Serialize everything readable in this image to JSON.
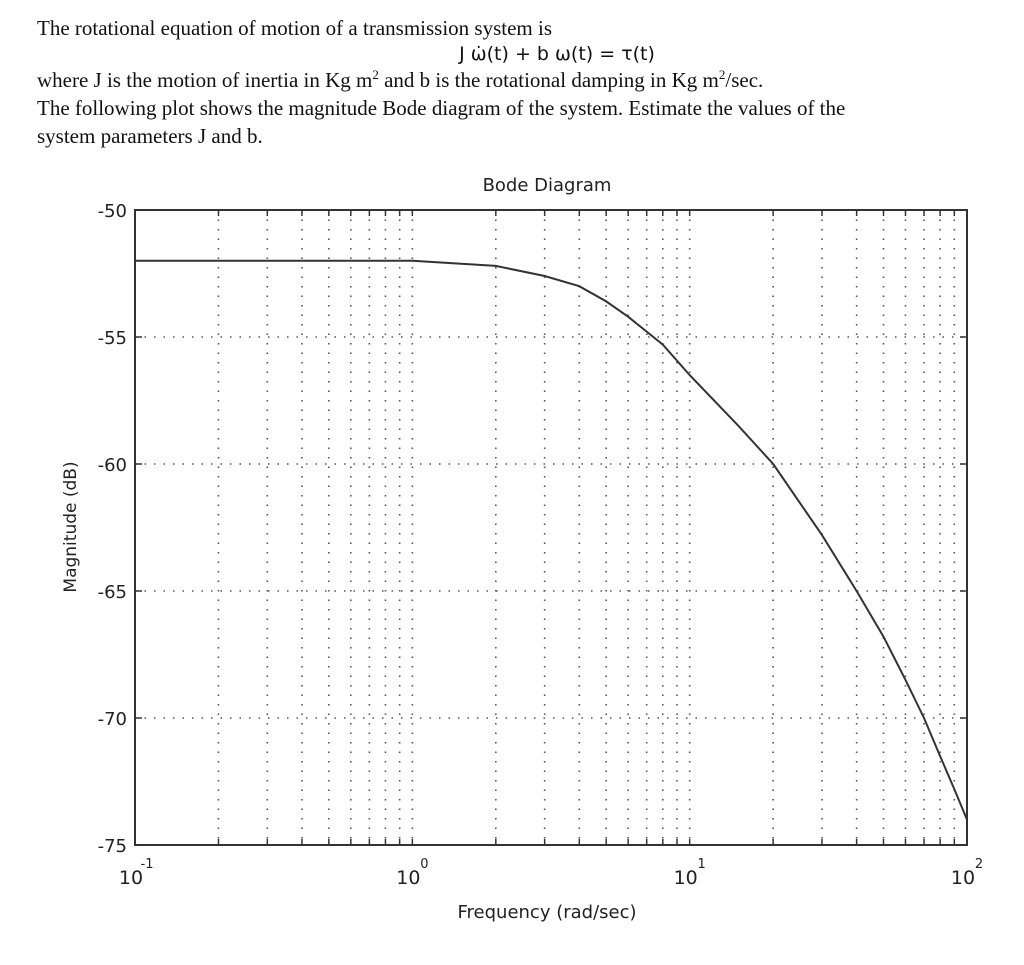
{
  "problem": {
    "line1": "The rotational equation of motion of a transmission system is",
    "equation": "J ω̇(t) + b ω(t) = τ(t)",
    "line3_a": "where J is the motion of inertia in Kg m",
    "line3_sup1": "2",
    "line3_b": " and b is the rotational damping in Kg m",
    "line3_sup2": "2",
    "line3_c": "/sec.",
    "line4": "The following plot shows the magnitude Bode diagram of the system. Estimate the values of the",
    "line5": "system parameters J and b."
  },
  "chart_data": {
    "type": "line",
    "title": "Bode Diagram",
    "xlabel": "Frequency (rad/sec)",
    "ylabel": "Magnitude (dB)",
    "xscale": "log",
    "xlim": [
      0.1,
      100
    ],
    "ylim": [
      -75,
      -50
    ],
    "grid": true,
    "x_ticks": [
      {
        "base": "10",
        "exp": "-1"
      },
      {
        "base": "10",
        "exp": "0"
      },
      {
        "base": "10",
        "exp": "1"
      },
      {
        "base": "10",
        "exp": "2"
      }
    ],
    "y_ticks": [
      "-50",
      "-55",
      "-60",
      "-65",
      "-70",
      "-75"
    ],
    "series": [
      {
        "name": "Magnitude",
        "x": [
          0.1,
          0.2,
          0.5,
          1.0,
          2.0,
          3.0,
          4.0,
          5.0,
          6.0,
          8.0,
          10.0,
          15.0,
          20.0,
          30.0,
          40.0,
          50.0,
          60.0,
          70.0,
          80.0,
          90.0,
          100.0
        ],
        "y": [
          -52.0,
          -52.0,
          -52.0,
          -52.0,
          -52.2,
          -52.6,
          -53.0,
          -53.6,
          -54.2,
          -55.3,
          -56.5,
          -58.5,
          -60.0,
          -62.8,
          -65.0,
          -66.8,
          -68.5,
          -70.0,
          -71.5,
          -72.8,
          -74.0
        ]
      }
    ]
  }
}
